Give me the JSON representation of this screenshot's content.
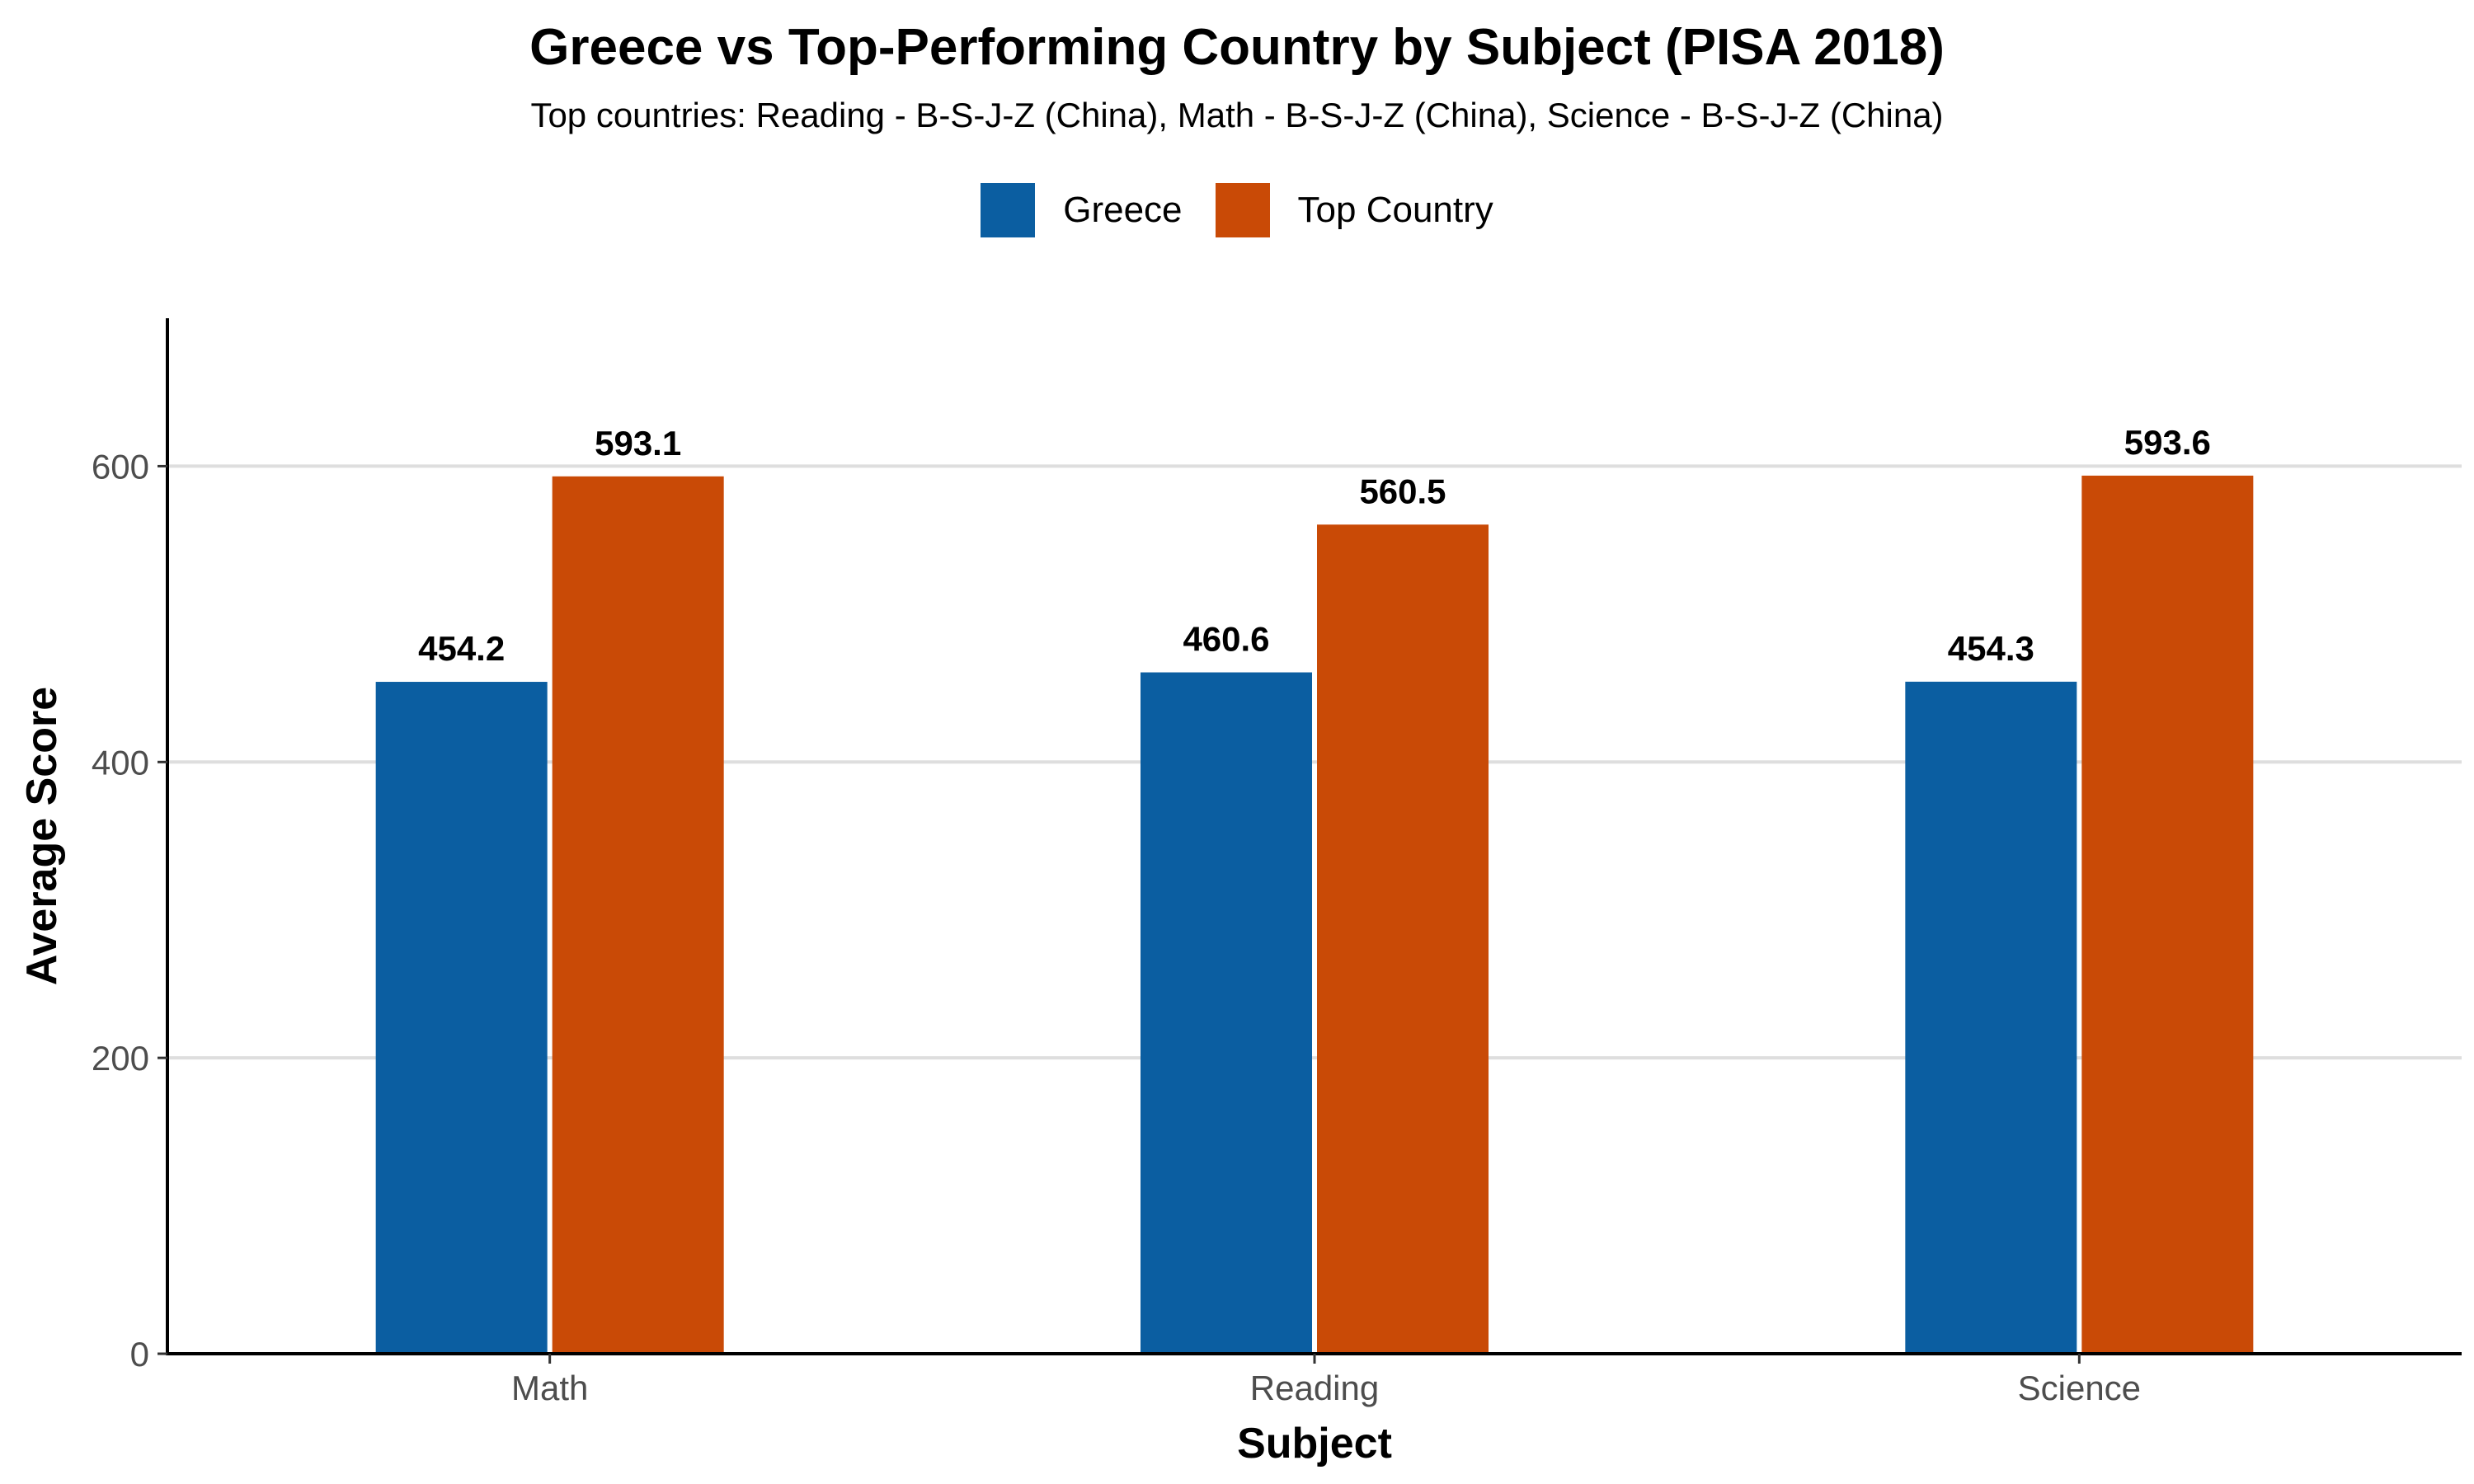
{
  "chart_data": {
    "type": "bar",
    "title": "Greece vs Top-Performing Country by Subject (PISA 2018)",
    "subtitle": "Top countries: Reading - B-S-J-Z (China),  Math - B-S-J-Z (China),  Science - B-S-J-Z (China)",
    "xlabel": "Subject",
    "ylabel": "Average Score",
    "categories": [
      "Math",
      "Reading",
      "Science"
    ],
    "series": [
      {
        "name": "Greece",
        "color": "#0b5ea1",
        "values": [
          454.2,
          460.6,
          454.3
        ]
      },
      {
        "name": "Top Country",
        "color": "#c94a06",
        "values": [
          593.1,
          560.5,
          593.6
        ]
      }
    ],
    "value_labels": [
      [
        "454.2",
        "460.6",
        "454.3"
      ],
      [
        "593.1",
        "560.5",
        "593.6"
      ]
    ],
    "ylim": [
      0,
      700
    ],
    "yticks": [
      0,
      200,
      400,
      600
    ],
    "ytick_labels": [
      "0",
      "200",
      "400",
      "600"
    ],
    "grid": "horizontal",
    "legend_position": "top"
  }
}
